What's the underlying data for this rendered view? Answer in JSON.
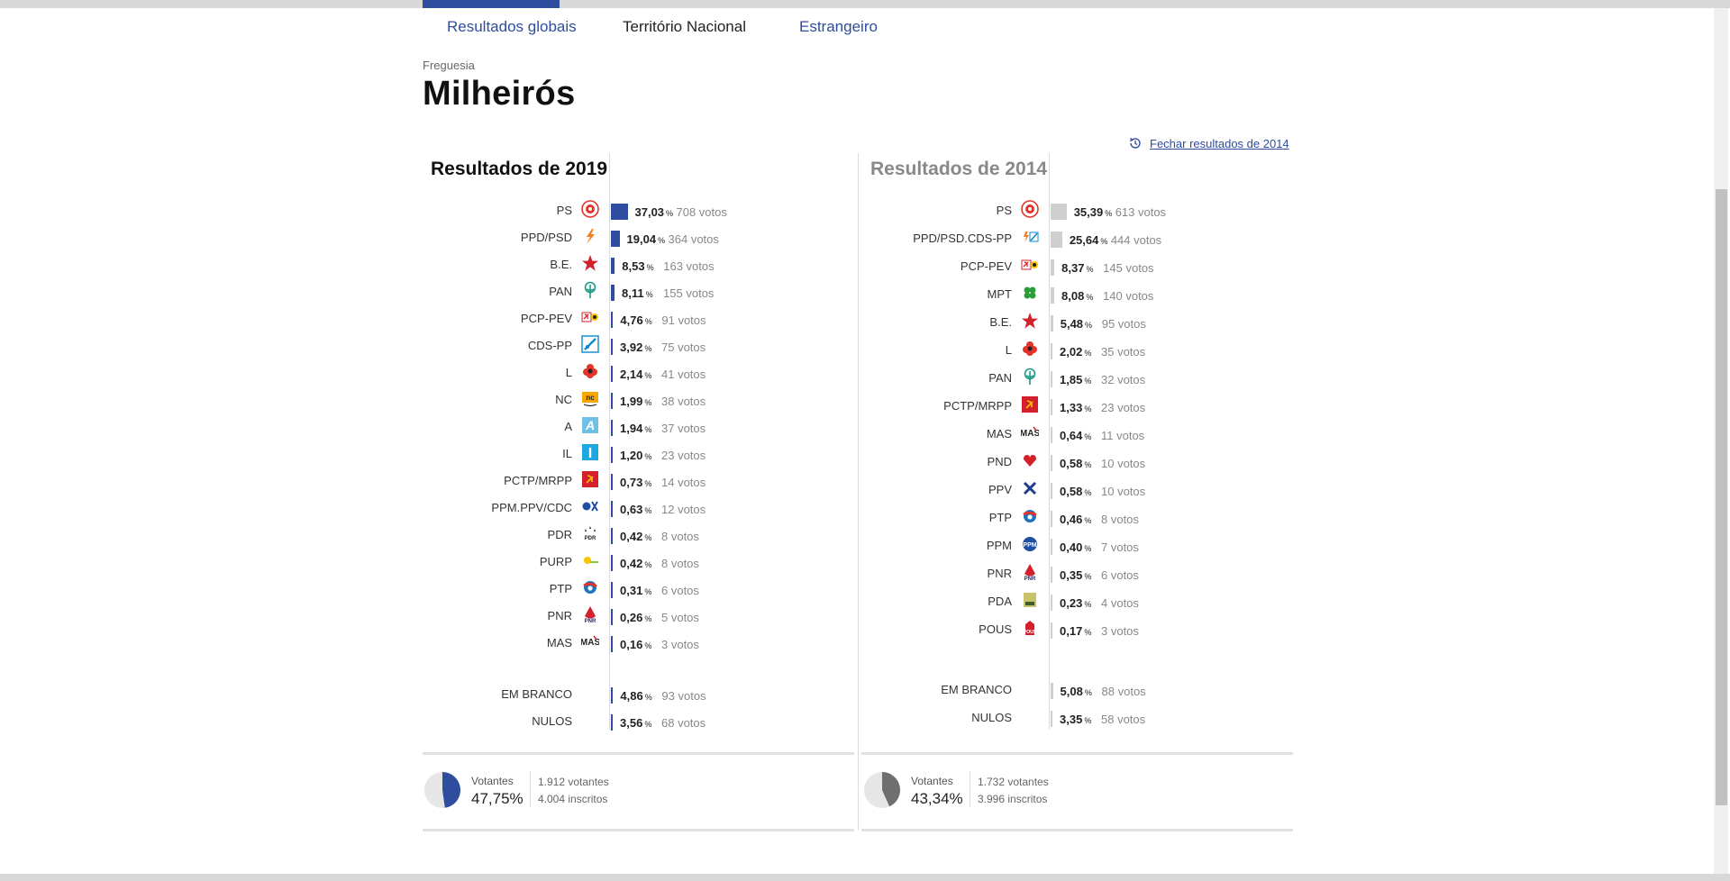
{
  "nav": {
    "tabs": [
      {
        "label": "Resultados globais"
      },
      {
        "label": "Território Nacional"
      },
      {
        "label": "Estrangeiro"
      }
    ]
  },
  "header": {
    "category": "Freguesia",
    "title": "Milheirós"
  },
  "close_link": "Fechar resultados de 2014",
  "colors": {
    "accent": "#2f4d9e",
    "bar2014": "#cfcfcf",
    "pie2014": "#6f6f6f"
  },
  "results2019": {
    "title": "Resultados de 2019",
    "pct_unit": "%",
    "parties": [
      {
        "name": "PS",
        "icon": "ps-icon",
        "pct": "37,03",
        "value": 37.03,
        "votes": "708 votos"
      },
      {
        "name": "PPD/PSD",
        "icon": "psd-icon",
        "pct": "19,04",
        "value": 19.04,
        "votes": "364 votos"
      },
      {
        "name": "B.E.",
        "icon": "be-star-icon",
        "pct": "8,53",
        "value": 8.53,
        "votes": "163 votos"
      },
      {
        "name": "PAN",
        "icon": "pan-tree-icon",
        "pct": "8,11",
        "value": 8.11,
        "votes": "155 votos"
      },
      {
        "name": "PCP-PEV",
        "icon": "pcp-pev-icon",
        "pct": "4,76",
        "value": 4.76,
        "votes": "91 votos"
      },
      {
        "name": "CDS-PP",
        "icon": "cds-icon",
        "pct": "3,92",
        "value": 3.92,
        "votes": "75 votos"
      },
      {
        "name": "L",
        "icon": "livre-flower-icon",
        "pct": "2,14",
        "value": 2.14,
        "votes": "41 votos"
      },
      {
        "name": "NC",
        "icon": "nc-icon",
        "pct": "1,99",
        "value": 1.99,
        "votes": "38 votos"
      },
      {
        "name": "A",
        "icon": "alianca-icon",
        "pct": "1,94",
        "value": 1.94,
        "votes": "37 votos"
      },
      {
        "name": "IL",
        "icon": "il-icon",
        "pct": "1,20",
        "value": 1.2,
        "votes": "23 votos"
      },
      {
        "name": "PCTP/MRPP",
        "icon": "pctp-icon",
        "pct": "0,73",
        "value": 0.73,
        "votes": "14 votos"
      },
      {
        "name": "PPM.PPV/CDC",
        "icon": "ppm-ppv-icon",
        "pct": "0,63",
        "value": 0.63,
        "votes": "12 votos"
      },
      {
        "name": "PDR",
        "icon": "pdr-icon",
        "pct": "0,42",
        "value": 0.42,
        "votes": "8 votos"
      },
      {
        "name": "PURP",
        "icon": "purp-icon",
        "pct": "0,42",
        "value": 0.42,
        "votes": "8 votos"
      },
      {
        "name": "PTP",
        "icon": "ptp-icon",
        "pct": "0,31",
        "value": 0.31,
        "votes": "6 votos"
      },
      {
        "name": "PNR",
        "icon": "pnr-icon",
        "pct": "0,26",
        "value": 0.26,
        "votes": "5 votos"
      },
      {
        "name": "MAS",
        "icon": "mas-icon",
        "pct": "0,16",
        "value": 0.16,
        "votes": "3 votos"
      }
    ],
    "others": [
      {
        "name": "EM BRANCO",
        "pct": "4,86",
        "value": 4.86,
        "votes": "93 votos"
      },
      {
        "name": "NULOS",
        "pct": "3,56",
        "value": 3.56,
        "votes": "68 votos"
      }
    ],
    "turnout": {
      "label": "Votantes",
      "pct": "47,75",
      "value": 47.75,
      "pct_unit": "%",
      "voters": "1.912 votantes",
      "registered": "4.004 inscritos"
    }
  },
  "results2014": {
    "title": "Resultados de 2014",
    "pct_unit": "%",
    "parties": [
      {
        "name": "PS",
        "icon": "ps-icon",
        "pct": "35,39",
        "value": 35.39,
        "votes": "613 votos"
      },
      {
        "name": "PPD/PSD.CDS-PP",
        "icon": "paf-icon",
        "pct": "25,64",
        "value": 25.64,
        "votes": "444 votos"
      },
      {
        "name": "PCP-PEV",
        "icon": "pcp-pev-icon",
        "pct": "8,37",
        "value": 8.37,
        "votes": "145 votos"
      },
      {
        "name": "MPT",
        "icon": "mpt-clover-icon",
        "pct": "8,08",
        "value": 8.08,
        "votes": "140 votos"
      },
      {
        "name": "B.E.",
        "icon": "be-star-icon",
        "pct": "5,48",
        "value": 5.48,
        "votes": "95 votos"
      },
      {
        "name": "L",
        "icon": "livre-flower-icon",
        "pct": "2,02",
        "value": 2.02,
        "votes": "35 votos"
      },
      {
        "name": "PAN",
        "icon": "pan-tree-icon",
        "pct": "1,85",
        "value": 1.85,
        "votes": "32 votos"
      },
      {
        "name": "PCTP/MRPP",
        "icon": "pctp-icon",
        "pct": "1,33",
        "value": 1.33,
        "votes": "23 votos"
      },
      {
        "name": "MAS",
        "icon": "mas-icon",
        "pct": "0,64",
        "value": 0.64,
        "votes": "11 votos"
      },
      {
        "name": "PND",
        "icon": "pnd-icon",
        "pct": "0,58",
        "value": 0.58,
        "votes": "10 votos"
      },
      {
        "name": "PPV",
        "icon": "ppv-icon",
        "pct": "0,58",
        "value": 0.58,
        "votes": "10 votos"
      },
      {
        "name": "PTP",
        "icon": "ptp-icon",
        "pct": "0,46",
        "value": 0.46,
        "votes": "8 votos"
      },
      {
        "name": "PPM",
        "icon": "ppm-icon",
        "pct": "0,40",
        "value": 0.4,
        "votes": "7 votos"
      },
      {
        "name": "PNR",
        "icon": "pnr-icon",
        "pct": "0,35",
        "value": 0.35,
        "votes": "6 votos"
      },
      {
        "name": "PDA",
        "icon": "pda-icon",
        "pct": "0,23",
        "value": 0.23,
        "votes": "4 votos"
      },
      {
        "name": "POUS",
        "icon": "pous-icon",
        "pct": "0,17",
        "value": 0.17,
        "votes": "3 votos"
      }
    ],
    "others": [
      {
        "name": "EM BRANCO",
        "pct": "5,08",
        "value": 5.08,
        "votes": "88 votos"
      },
      {
        "name": "NULOS",
        "pct": "3,35",
        "value": 3.35,
        "votes": "58 votos"
      }
    ],
    "turnout": {
      "label": "Votantes",
      "pct": "43,34",
      "value": 43.34,
      "pct_unit": "%",
      "voters": "1.732 votantes",
      "registered": "3.996 inscritos"
    }
  }
}
